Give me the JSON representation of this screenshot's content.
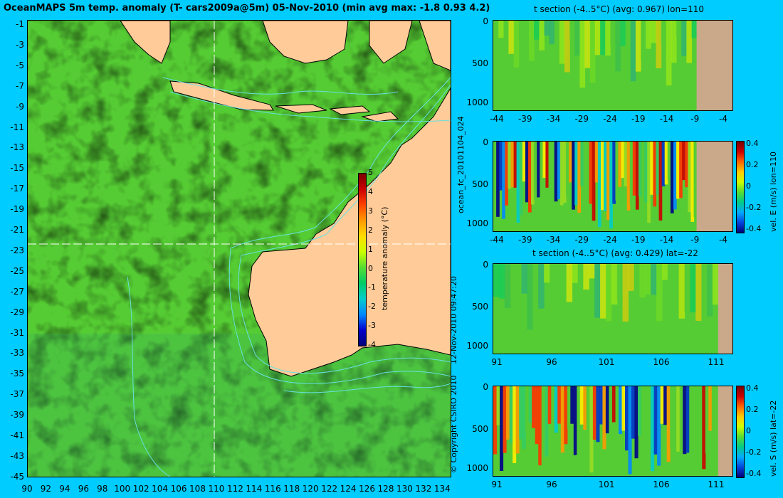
{
  "map": {
    "title": "OceanMAPS 5m temp. anomaly (T- cars2009a@5m) 05-Nov-2010 (min avg max: -1.8 0.93 4.2)",
    "lon_ticks": [
      "90",
      "92",
      "94",
      "96",
      "98",
      "100",
      "102",
      "104",
      "106",
      "108",
      "110",
      "112",
      "114",
      "116",
      "118",
      "120",
      "122",
      "124",
      "126",
      "128",
      "130",
      "132",
      "134"
    ],
    "lat_ticks": [
      "-1",
      "-3",
      "-5",
      "-7",
      "-9",
      "-11",
      "-13",
      "-15",
      "-17",
      "-19",
      "-21",
      "-23",
      "-25",
      "-27",
      "-29",
      "-31",
      "-33",
      "-35",
      "-37",
      "-39",
      "-41",
      "-43",
      "-45"
    ],
    "colorbar": {
      "label": "temperature anomaly (°C)",
      "ticks": [
        "5",
        "4",
        "3",
        "2",
        "1",
        "0",
        "-1",
        "-2",
        "-3",
        "-4"
      ]
    },
    "section_lon": 110,
    "section_lat": -22
  },
  "side_labels": {
    "forecast_id": "ocean_fc_20101104_024",
    "timestamp": "12-Nov-2010 09:47:20",
    "copyright": "© Copyright CSIRO 2010"
  },
  "panels": [
    {
      "title": "t section (-4..5°C) (avg: 0.967) lon=110",
      "xticks": [
        "-44",
        "-39",
        "-34",
        "-29",
        "-24",
        "-19",
        "-14",
        "-9",
        "-4"
      ],
      "yticks": [
        "0",
        "500",
        "1000"
      ],
      "side_label": ""
    },
    {
      "title": "",
      "xticks": [
        "-44",
        "-39",
        "-34",
        "-29",
        "-24",
        "-19",
        "-14",
        "-9",
        "-4"
      ],
      "yticks": [
        "0",
        "500",
        "1000"
      ],
      "side_label": "vel. E (m/s) lon=110",
      "cbar_ticks": [
        "0.4",
        "0.2",
        "0",
        "-0.2",
        "-0.4"
      ]
    },
    {
      "title": "t section (-4..5°C) (avg: 0.429) lat=-22",
      "xticks": [
        "91",
        "96",
        "101",
        "106",
        "111"
      ],
      "yticks": [
        "0",
        "500",
        "1000"
      ],
      "side_label": ""
    },
    {
      "title": "",
      "xticks": [
        "91",
        "96",
        "101",
        "106",
        "111"
      ],
      "yticks": [
        "0",
        "500",
        "1000"
      ],
      "side_label": "vel. S (m/s) lat=-22",
      "cbar_ticks": [
        "0.4",
        "0.2",
        "0",
        "-0.2",
        "-0.4"
      ]
    }
  ],
  "colors": {
    "background": "#00ccff",
    "land": "#ffcc99",
    "section_land": "#c9a98a",
    "ocean_green": "#55cc33",
    "bathymetry": "#66e0e0"
  },
  "chart_data": [
    {
      "type": "heatmap",
      "title": "OceanMAPS 5m temp. anomaly (T- cars2009a@5m) 05-Nov-2010 (min avg max: -1.8 0.93 4.2)",
      "xlabel": "",
      "ylabel": "",
      "xlim": [
        90,
        135
      ],
      "ylim": [
        -45,
        0
      ],
      "color_range": [
        -4,
        5
      ],
      "colorbar_label": "temperature anomaly (°C)",
      "stats": {
        "min": -1.8,
        "avg": 0.93,
        "max": 4.2
      }
    },
    {
      "type": "heatmap",
      "title": "t section (-4..5°C) (avg: 0.967) lon=110",
      "xlim": [
        -45,
        -3
      ],
      "ylim": [
        1050,
        0
      ],
      "color_range": [
        -4,
        5
      ],
      "avg": 0.967
    },
    {
      "type": "heatmap",
      "title": "",
      "xlim": [
        -45,
        -3
      ],
      "ylim": [
        1050,
        0
      ],
      "color_range": [
        -0.4,
        0.4
      ],
      "colorbar_label": "vel. E (m/s) lon=110"
    },
    {
      "type": "heatmap",
      "title": "t section (-4..5°C) (avg: 0.429) lat=-22",
      "xlim": [
        89,
        115
      ],
      "ylim": [
        1050,
        0
      ],
      "color_range": [
        -4,
        5
      ],
      "avg": 0.429
    },
    {
      "type": "heatmap",
      "title": "",
      "xlim": [
        89,
        115
      ],
      "ylim": [
        1050,
        0
      ],
      "color_range": [
        -0.4,
        0.4
      ],
      "colorbar_label": "vel. S (m/s) lat=-22"
    }
  ]
}
